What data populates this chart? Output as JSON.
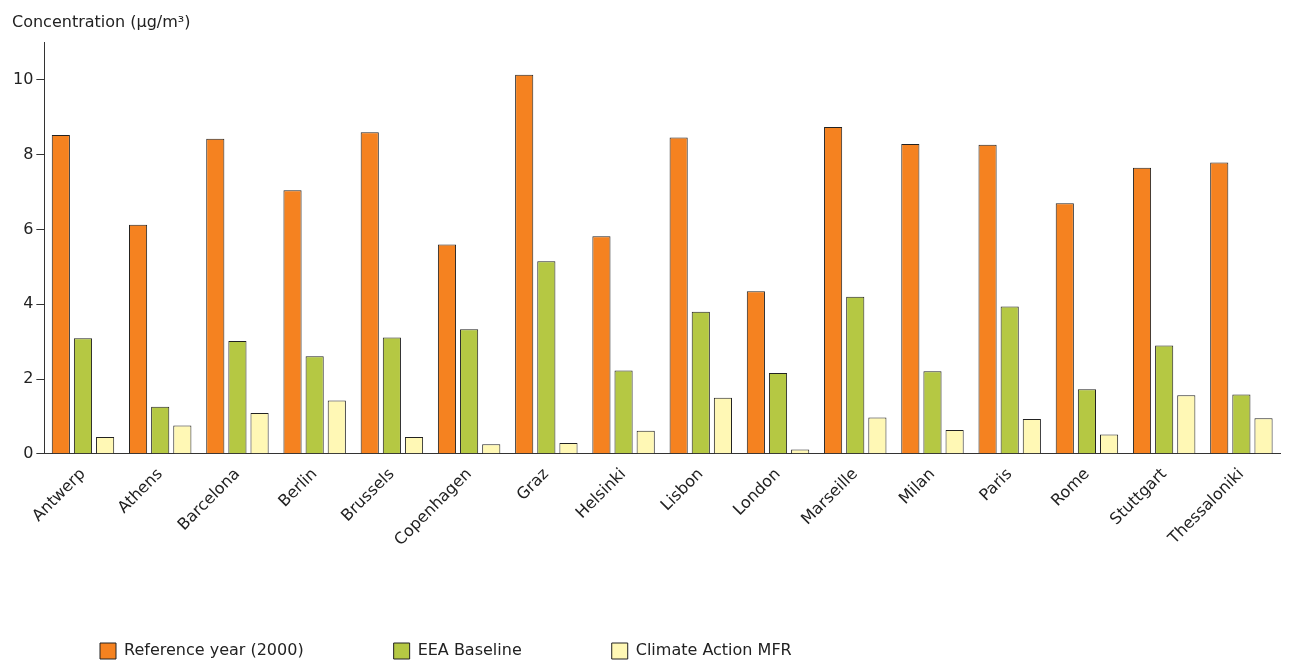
{
  "chart_data": {
    "type": "bar",
    "ylabel": "Concentration (µg/m³)",
    "categories": [
      "Antwerp",
      "Athens",
      "Barcelona",
      "Berlin",
      "Brussels",
      "Copenhagen",
      "Graz",
      "Helsinki",
      "Lisbon",
      "London",
      "Marseille",
      "Milan",
      "Paris",
      "Rome",
      "Stuttgart",
      "Thessaloniki"
    ],
    "series": [
      {
        "name": "Reference year (2000)",
        "color": "#f58220",
        "values": [
          8.53,
          6.13,
          8.43,
          7.05,
          8.6,
          5.6,
          10.14,
          5.82,
          8.46,
          4.35,
          8.74,
          8.29,
          8.27,
          6.7,
          7.65,
          7.79
        ]
      },
      {
        "name": "EEA Baseline",
        "color": "#b5c843",
        "values": [
          3.09,
          1.26,
          3.02,
          2.61,
          3.11,
          3.33,
          5.15,
          2.23,
          3.8,
          2.16,
          4.2,
          2.21,
          3.94,
          1.73,
          2.9,
          1.59
        ]
      },
      {
        "name": "Climate Action MFR",
        "color": "#fff8b5",
        "values": [
          0.45,
          0.76,
          1.09,
          1.43,
          0.45,
          0.26,
          0.29,
          0.62,
          1.5,
          0.12,
          0.97,
          0.64,
          0.93,
          0.52,
          1.57,
          0.95
        ]
      }
    ],
    "ylim": [
      0,
      11
    ],
    "yticks": [
      0,
      2,
      4,
      6,
      8,
      10
    ],
    "grid": false,
    "legend": "bottom left"
  }
}
